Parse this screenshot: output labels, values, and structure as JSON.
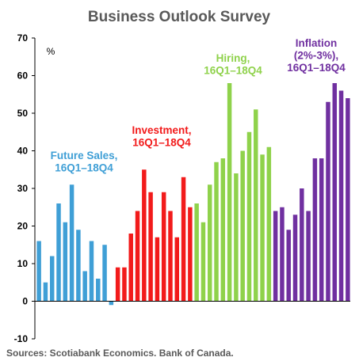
{
  "chart_data": {
    "type": "bar",
    "title": "Business Outlook Survey",
    "unit_label": "%",
    "ylim": [
      -10,
      70
    ],
    "yticks": [
      -10,
      0,
      10,
      20,
      30,
      40,
      50,
      60,
      70
    ],
    "grid": false,
    "legend": "none",
    "source": "Sources: Scotiabank Economics. Bank of Canada.",
    "series": [
      {
        "label_lines": [
          "Future Sales,",
          "16Q1–18Q4"
        ],
        "color": "#3f9fd6",
        "values": [
          16,
          5,
          12,
          26,
          21,
          31,
          19,
          8,
          16,
          6,
          15,
          -1
        ]
      },
      {
        "label_lines": [
          "Investment,",
          "16Q1–18Q4"
        ],
        "color": "#f21b1b",
        "values": [
          9,
          9,
          18,
          24,
          35,
          29,
          17,
          29,
          24,
          17,
          33,
          25
        ]
      },
      {
        "label_lines": [
          "Hiring,",
          "16Q1–18Q4"
        ],
        "color": "#8fd24b",
        "values": [
          26,
          21,
          31,
          37,
          38,
          58,
          34,
          40,
          45,
          51,
          39,
          41
        ]
      },
      {
        "label_lines": [
          "Inflation",
          "(2%-3%),",
          "16Q1–18Q4"
        ],
        "color": "#7030a0",
        "values": [
          24,
          25,
          19,
          23,
          30,
          24,
          38,
          38,
          53,
          58,
          56,
          54
        ]
      }
    ]
  }
}
